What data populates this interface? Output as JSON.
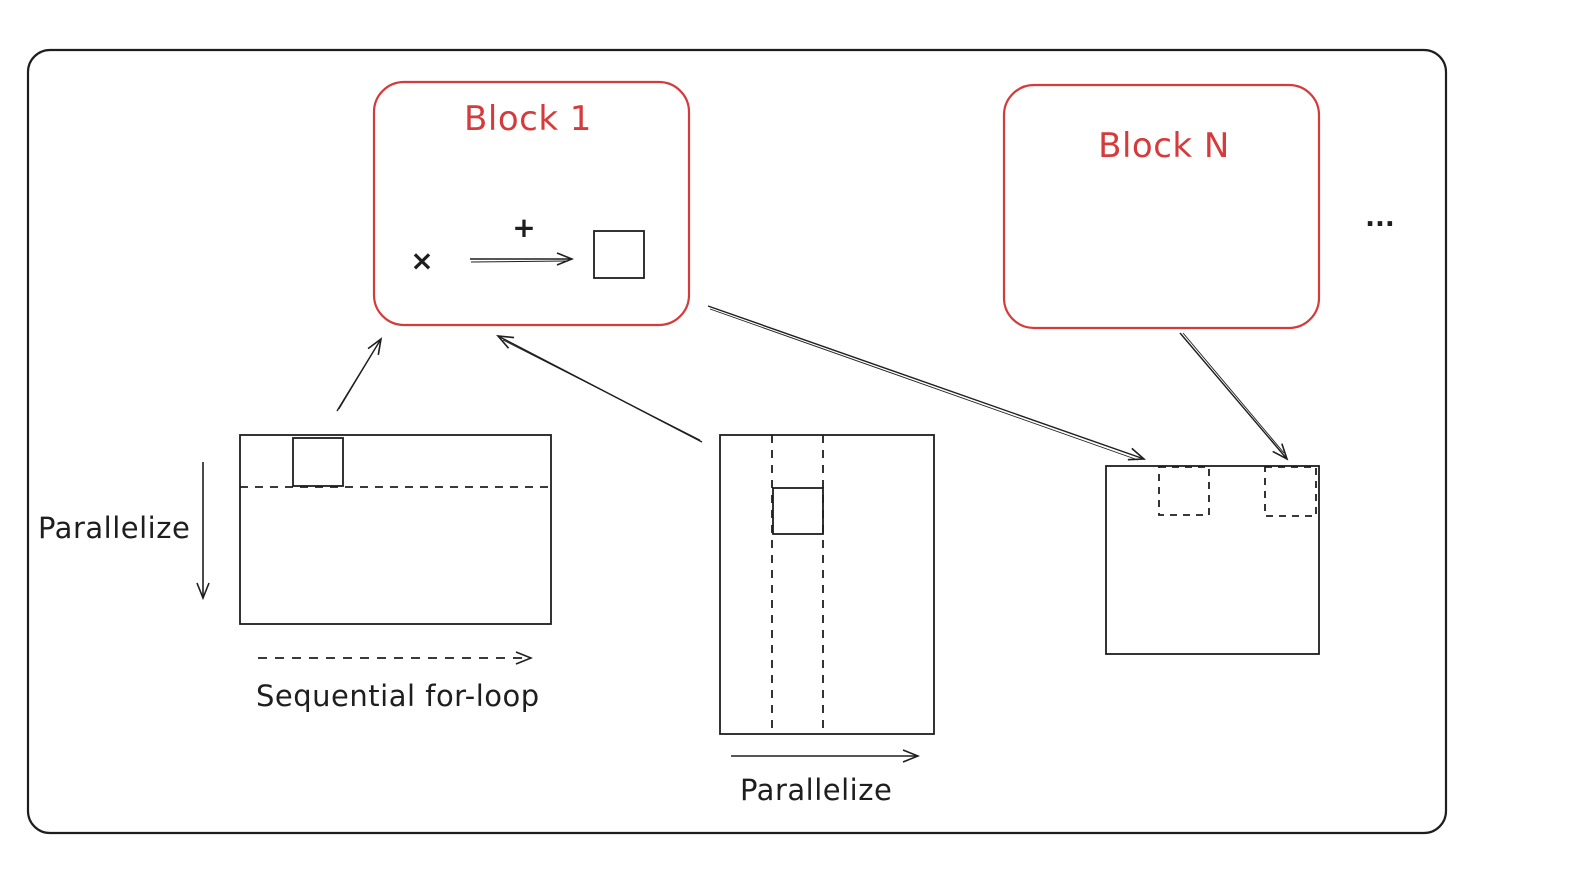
{
  "diagram": {
    "blocks": [
      {
        "title": "Block 1",
        "ops": {
          "multiply": "×",
          "add": "+"
        }
      },
      {
        "title": "Block N"
      }
    ],
    "ellipsis": "...",
    "labels": {
      "left_vertical": "Parallelize",
      "left_horizontal": "Sequential for-loop",
      "middle_horizontal": "Parallelize"
    }
  },
  "colors": {
    "ink": "#1e1e1e",
    "block_outline": "#d63b3b",
    "background": "#ffffff"
  }
}
